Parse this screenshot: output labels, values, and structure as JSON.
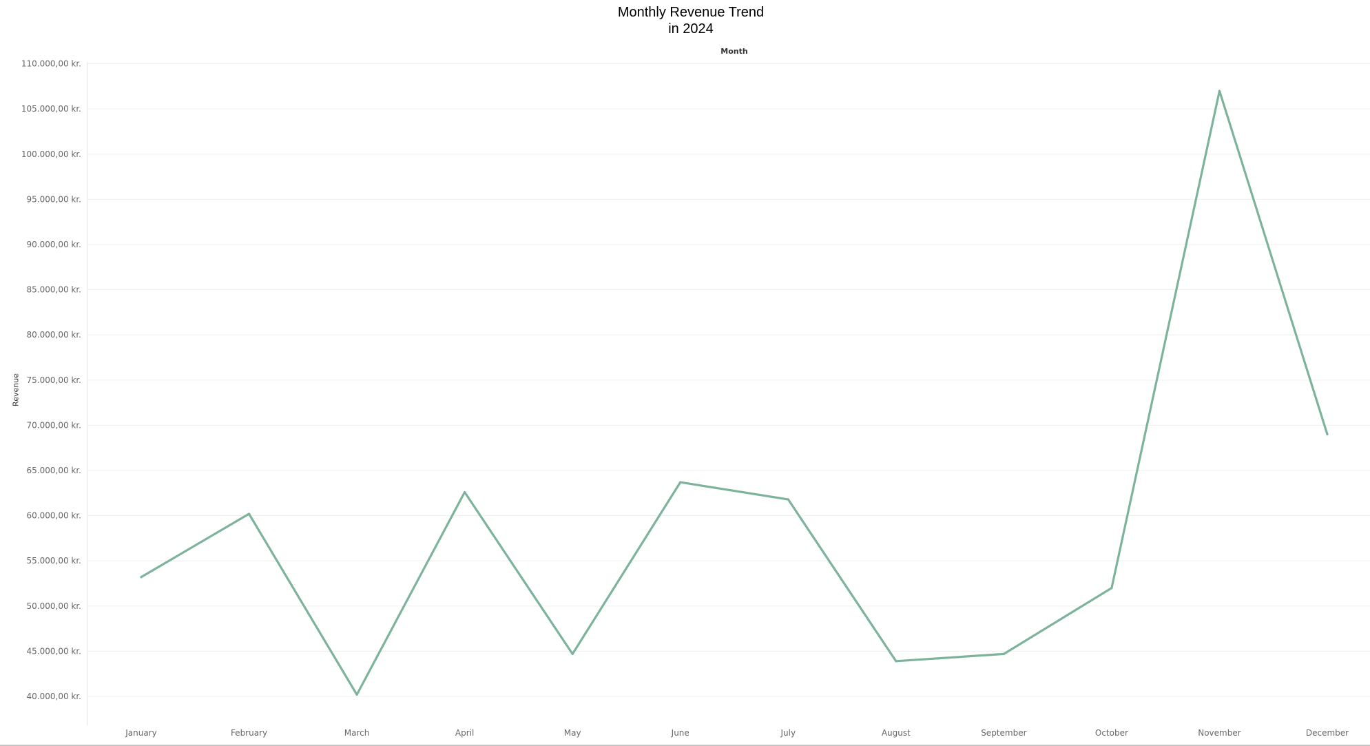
{
  "chart_data": {
    "type": "line",
    "title_lines": [
      "Monthly Revenue Trend",
      "in 2024"
    ],
    "xlabel": "Month",
    "ylabel": "Revenue",
    "categories": [
      "January",
      "February",
      "March",
      "April",
      "May",
      "June",
      "July",
      "August",
      "September",
      "October",
      "November",
      "December"
    ],
    "series": [
      {
        "values": [
          53200,
          60200,
          40200,
          62600,
          44700,
          63700,
          61800,
          43900,
          44700,
          52000,
          107000,
          69000
        ]
      }
    ],
    "ylim": [
      36800,
      110200
    ],
    "yticks": [
      40000,
      45000,
      50000,
      55000,
      60000,
      65000,
      70000,
      75000,
      80000,
      85000,
      90000,
      95000,
      100000,
      105000,
      110000
    ],
    "ytick_labels": [
      "40.000,00 kr.",
      "45.000,00 kr.",
      "50.000,00 kr.",
      "55.000,00 kr.",
      "60.000,00 kr.",
      "65.000,00 kr.",
      "70.000,00 kr.",
      "75.000,00 kr.",
      "80.000,00 kr.",
      "85.000,00 kr.",
      "90.000,00 kr.",
      "95.000,00 kr.",
      "100.000,00 kr.",
      "105.000,00 kr.",
      "110.000,00 kr."
    ],
    "grid": true,
    "colors": {
      "line": "#7db39b",
      "grid": "#efefef",
      "axis": "#e3e3e3",
      "tick_text": "#666666"
    }
  }
}
